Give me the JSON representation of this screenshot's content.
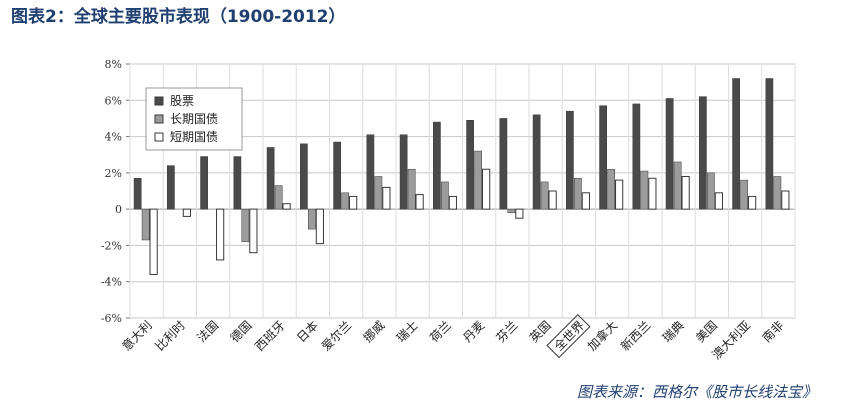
{
  "title": "图表2：全球主要股市表现（1900-2012）",
  "source": "图表来源：西格尔《股市长线法宝》",
  "chart_data": {
    "type": "bar",
    "categories": [
      "意大利",
      "比利时",
      "法国",
      "德国",
      "西班牙",
      "日本",
      "爱尔兰",
      "挪威",
      "瑞士",
      "荷兰",
      "丹麦",
      "芬兰",
      "英国",
      "全世界",
      "加拿大",
      "新西兰",
      "瑞典",
      "美国",
      "澳大利亚",
      "南非"
    ],
    "boxed_category": "全世界",
    "series": [
      {
        "name": "股票",
        "color": "#4a4a4a",
        "values": [
          1.7,
          2.4,
          2.9,
          2.9,
          3.4,
          3.6,
          3.7,
          4.1,
          4.1,
          4.8,
          4.9,
          5.0,
          5.2,
          5.4,
          5.7,
          5.8,
          6.1,
          6.2,
          7.2,
          7.2
        ]
      },
      {
        "name": "长期国债",
        "color": "#9c9c9c",
        "values": [
          -1.7,
          0.0,
          0.0,
          -1.8,
          1.3,
          -1.1,
          0.9,
          1.8,
          2.2,
          1.5,
          3.2,
          -0.2,
          1.5,
          1.7,
          2.2,
          2.1,
          2.6,
          2.0,
          1.6,
          1.8
        ]
      },
      {
        "name": "短期国债",
        "color": "#ffffff",
        "values": [
          -3.6,
          -0.4,
          -2.8,
          -2.4,
          0.3,
          -1.9,
          0.7,
          1.2,
          0.8,
          0.7,
          2.2,
          -0.5,
          1.0,
          0.9,
          1.6,
          1.7,
          1.8,
          0.9,
          0.7,
          1.0
        ]
      }
    ],
    "ylim": [
      -6,
      8
    ],
    "yticks": [
      "-6%",
      "-4%",
      "-2%",
      "0",
      "2%",
      "4%",
      "6%",
      "8%"
    ],
    "ytick_values": [
      -6,
      -4,
      -2,
      0,
      2,
      4,
      6,
      8
    ],
    "grid": true,
    "legend_position": "top-left"
  }
}
